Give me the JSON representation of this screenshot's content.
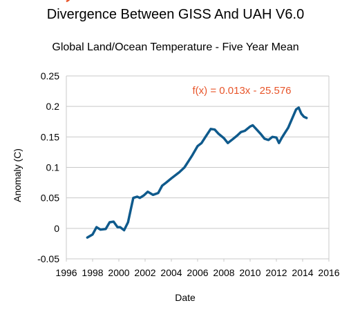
{
  "chart_data": {
    "type": "line",
    "title": "Divergence Between GISS And UAH V6.0",
    "subtitle": "Global Land/Ocean Temperature - Five Year Mean",
    "xlabel": "Date",
    "ylabel": "Anomaly (C)",
    "xlim": [
      1996,
      2016
    ],
    "ylim": [
      -0.05,
      0.25
    ],
    "x_ticks": [
      "1996",
      "1998",
      "2000",
      "2002",
      "2004",
      "2006",
      "2008",
      "2010",
      "2012",
      "2014",
      "2016"
    ],
    "y_ticks": [
      "-0.05",
      "0",
      "0.05",
      "0.1",
      "0.15",
      "0.2",
      "0.25"
    ],
    "grid": "horizontal",
    "colors": {
      "series": "#0f5a8c",
      "trendline": "#e8552a",
      "grid": "#c8c8c8"
    },
    "series": [
      {
        "x": [
          1997.6,
          1998.0,
          1998.3,
          1998.6,
          1999.0,
          1999.3,
          1999.6,
          1999.9,
          2000.1,
          2000.4,
          2000.7,
          2000.9,
          2001.1,
          2001.4,
          2001.6,
          2001.9,
          2002.2,
          2002.6,
          2003.0,
          2003.3,
          2003.6,
          2004.0,
          2004.3,
          2004.6,
          2005.0,
          2005.3,
          2005.6,
          2006.0,
          2006.3,
          2006.6,
          2007.0,
          2007.3,
          2007.6,
          2008.0,
          2008.3,
          2008.6,
          2009.0,
          2009.3,
          2009.6,
          2010.0,
          2010.2,
          2010.5,
          2010.8,
          2011.1,
          2011.4,
          2011.7,
          2012.0,
          2012.2,
          2012.4,
          2012.6,
          2012.9,
          2013.2,
          2013.5,
          2013.7,
          2013.9,
          2014.1,
          2014.3
        ],
        "values": [
          -0.015,
          -0.01,
          0.002,
          -0.002,
          -0.001,
          0.01,
          0.011,
          0.002,
          0.002,
          -0.003,
          0.01,
          0.03,
          0.05,
          0.052,
          0.05,
          0.054,
          0.06,
          0.055,
          0.058,
          0.07,
          0.075,
          0.082,
          0.087,
          0.092,
          0.1,
          0.11,
          0.12,
          0.135,
          0.14,
          0.15,
          0.163,
          0.162,
          0.155,
          0.148,
          0.14,
          0.145,
          0.152,
          0.158,
          0.16,
          0.167,
          0.169,
          0.162,
          0.155,
          0.147,
          0.145,
          0.15,
          0.149,
          0.14,
          0.148,
          0.155,
          0.165,
          0.18,
          0.195,
          0.198,
          0.188,
          0.183,
          0.181
        ]
      }
    ],
    "trendline": {
      "slope": 0.013,
      "intercept": -25.576,
      "x_range": [
        1996,
        2016
      ],
      "label": "f(x) = 0.013x - 25.576"
    }
  }
}
